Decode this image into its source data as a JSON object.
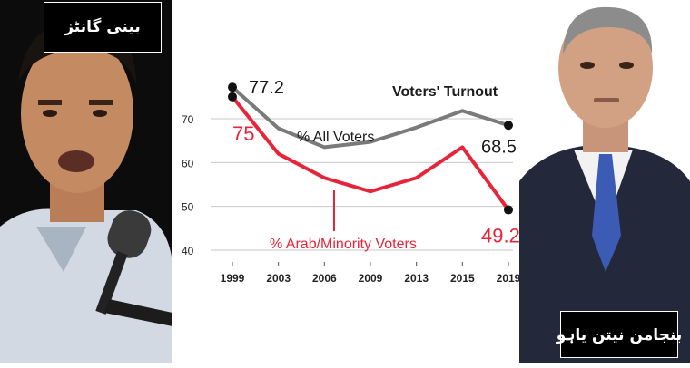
{
  "captions": {
    "left": "بینی گانٹز",
    "right": "بنجامن نیتن یاہو"
  },
  "colors": {
    "all_voters": "#7a7a7a",
    "arab_voters": "#e8243a",
    "marker": "#111111",
    "grid": "#c9c9c9",
    "caption_bg": "#000000"
  },
  "chart_data": {
    "type": "line",
    "title": "Voters' Turnout",
    "x": [
      "1999",
      "2003",
      "2006",
      "2009",
      "2013",
      "2015",
      "2019"
    ],
    "y_ticks": [
      "70",
      "60",
      "50",
      "40"
    ],
    "ylim": [
      37,
      80
    ],
    "grid": true,
    "series": [
      {
        "name": "% All Voters",
        "values": [
          77.2,
          67.8,
          63.5,
          64.7,
          68.0,
          71.8,
          68.5
        ]
      },
      {
        "name": "% Arab/Minority Voters",
        "values": [
          75,
          62,
          56.5,
          53.4,
          56.5,
          63.5,
          49.2
        ]
      }
    ],
    "data_labels": [
      {
        "series": 0,
        "index": 0,
        "text": "77.2"
      },
      {
        "series": 0,
        "index": 6,
        "text": "68.5"
      },
      {
        "series": 1,
        "index": 0,
        "text": "75"
      },
      {
        "series": 1,
        "index": 6,
        "text": "49.2"
      }
    ]
  }
}
